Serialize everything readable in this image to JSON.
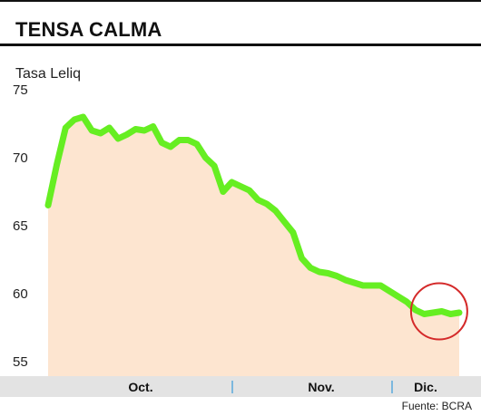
{
  "chart_data": {
    "type": "area",
    "title": "TENSA CALMA",
    "ylabel": "Tasa Leliq",
    "ylim": [
      55,
      75
    ],
    "yticks": [
      75,
      70,
      65,
      60,
      55
    ],
    "xlabels": [
      "Oct.",
      "Nov.",
      "Dic."
    ],
    "source": "Fuente: BCRA",
    "values": [
      66.5,
      69.5,
      72.2,
      72.8,
      73.0,
      72.0,
      71.8,
      72.2,
      71.4,
      71.7,
      72.1,
      72.0,
      72.3,
      71.1,
      70.8,
      71.3,
      71.3,
      71.0,
      70.0,
      69.4,
      67.5,
      68.2,
      67.9,
      67.6,
      66.9,
      66.6,
      66.1,
      65.3,
      64.5,
      62.6,
      61.9,
      61.6,
      61.5,
      61.3,
      61.0,
      60.8,
      60.6,
      60.6,
      60.6,
      60.2,
      59.8,
      59.4,
      58.8,
      58.5,
      58.6,
      58.7,
      58.5,
      58.6
    ],
    "colors": {
      "line": "#66ee22",
      "area": "#fde5d0",
      "highlight": "#d42a2a",
      "axis_band": "#e3e3e3",
      "separator": "#5aa9dd"
    },
    "highlight": "circle around last values (Dic.)"
  }
}
